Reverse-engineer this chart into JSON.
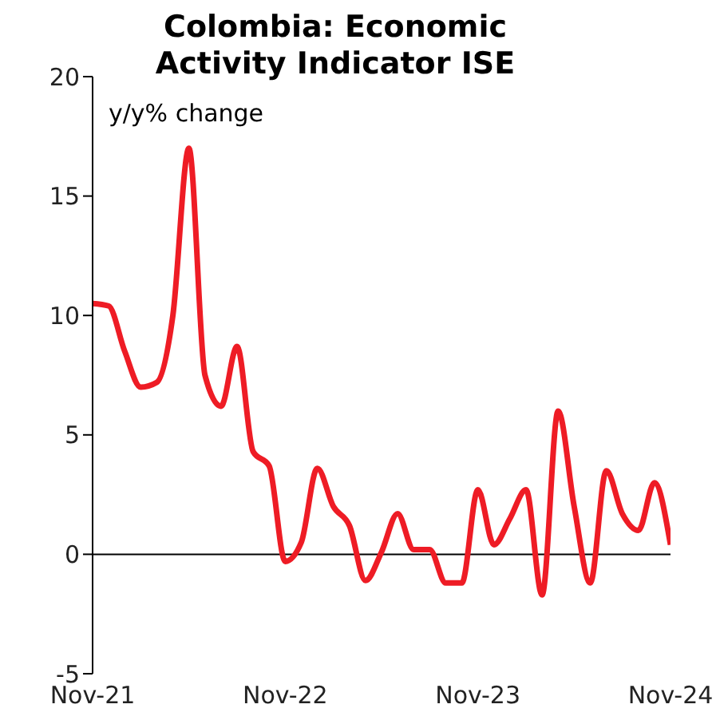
{
  "chart_data": {
    "type": "line",
    "title": "Colombia: Economic Activity Indicator ISE",
    "ylabel": "y/y% change",
    "x": [
      "2021-11",
      "2021-12",
      "2022-01",
      "2022-02",
      "2022-03",
      "2022-04",
      "2022-05",
      "2022-06",
      "2022-07",
      "2022-08",
      "2022-09",
      "2022-10",
      "2022-11",
      "2022-12",
      "2023-01",
      "2023-02",
      "2023-03",
      "2023-04",
      "2023-05",
      "2023-06",
      "2023-07",
      "2023-08",
      "2023-09",
      "2023-10",
      "2023-11",
      "2023-12",
      "2024-01",
      "2024-02",
      "2024-03",
      "2024-04",
      "2024-05",
      "2024-06",
      "2024-07",
      "2024-08",
      "2024-09",
      "2024-10",
      "2024-11"
    ],
    "series": [
      {
        "color": "#ee1c25",
        "values": [
          10.5,
          10.4,
          8.5,
          7.0,
          7.2,
          10.0,
          17.0,
          7.5,
          6.2,
          8.7,
          4.3,
          3.7,
          -0.3,
          0.5,
          3.6,
          2.0,
          1.2,
          -1.1,
          0.1,
          1.7,
          0.2,
          0.2,
          -1.2,
          -1.2,
          2.7,
          0.4,
          1.5,
          2.7,
          -1.7,
          6.0,
          2.0,
          -1.2,
          3.5,
          1.7,
          1.0,
          3.0,
          0.4
        ]
      }
    ],
    "xlim": [
      "2021-11",
      "2024-11"
    ],
    "xticks": [
      {
        "value": "2021-11",
        "label": "Nov-21"
      },
      {
        "value": "2022-11",
        "label": "Nov-22"
      },
      {
        "value": "2023-11",
        "label": "Nov-23"
      },
      {
        "value": "2024-11",
        "label": "Nov-24"
      }
    ],
    "ref_lines": [
      {
        "axis": "y",
        "value": 0,
        "color": "#000000"
      }
    ],
    "ylim": [
      -5,
      20
    ],
    "yticks": [
      -5,
      0,
      5,
      10,
      15,
      20
    ],
    "grid": false,
    "legend": false,
    "marker": "none",
    "line_style": "solid"
  }
}
